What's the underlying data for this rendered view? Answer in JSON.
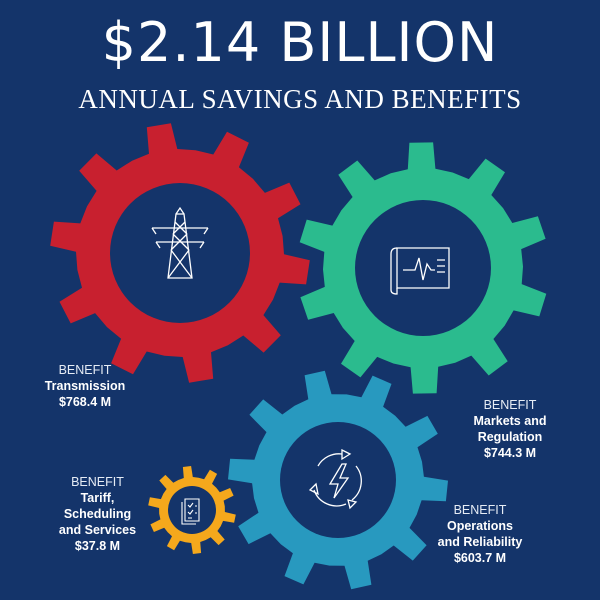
{
  "header": {
    "title": "$2.14 BILLION",
    "subtitle": "ANNUAL SAVINGS AND BENEFITS"
  },
  "colors": {
    "background": "#14346a",
    "transmission": "#c8202f",
    "markets": "#2bbb8e",
    "operations": "#2899bf",
    "tariff": "#f5a81c"
  },
  "benefits": [
    {
      "kicker": "BENEFIT",
      "name": "Transmission",
      "value": "$768.4 M",
      "icon": "transmission-tower-icon"
    },
    {
      "kicker": "BENEFIT",
      "name_lines": [
        "Markets and",
        "Regulation"
      ],
      "value": "$744.3 M",
      "icon": "market-chart-icon"
    },
    {
      "kicker": "BENEFIT",
      "name_lines": [
        "Operations",
        "and Reliability"
      ],
      "value": "$603.7 M",
      "icon": "power-cycle-icon"
    },
    {
      "kicker": "BENEFIT",
      "name_lines": [
        "Tariff,",
        "Scheduling",
        "and Services"
      ],
      "value": "$37.8 M",
      "icon": "document-checklist-icon"
    }
  ]
}
